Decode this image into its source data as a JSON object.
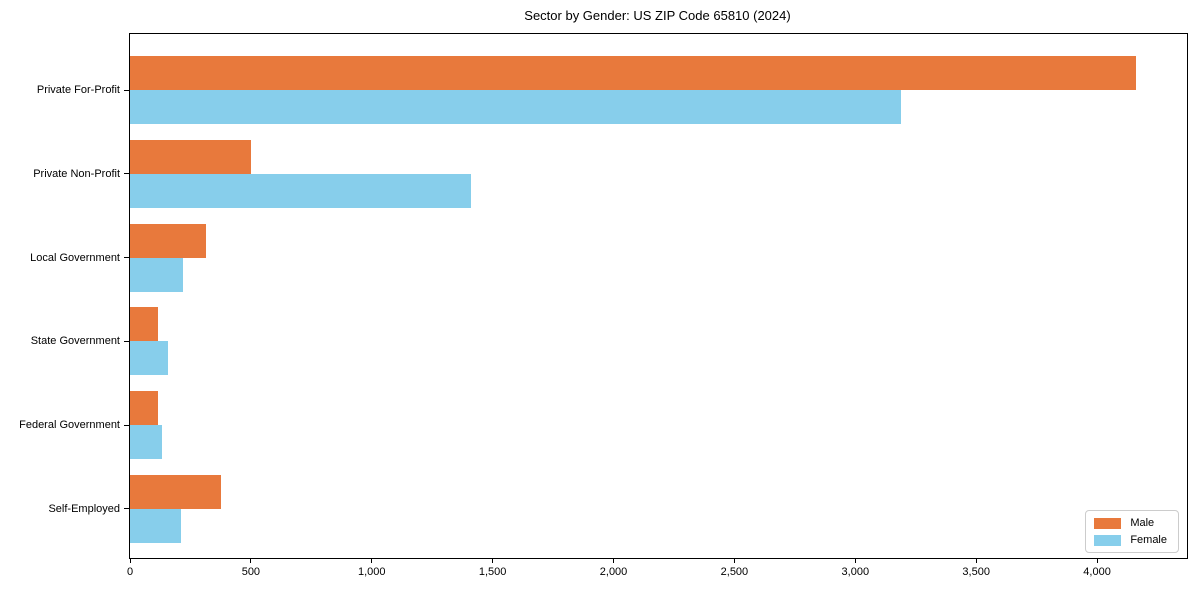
{
  "title": "Sector by Gender: US ZIP Code 65810 (2024)",
  "chart_data": {
    "type": "bar",
    "orientation": "horizontal",
    "title": "Sector by Gender: US ZIP Code 65810 (2024)",
    "xlabel": "",
    "ylabel": "",
    "categories": [
      "Private For-Profit",
      "Private Non-Profit",
      "Local Government",
      "State Government",
      "Federal Government",
      "Self-Employed"
    ],
    "series": [
      {
        "name": "Male",
        "color": "#E8793C",
        "values": [
          4160,
          500,
          315,
          117,
          117,
          375
        ]
      },
      {
        "name": "Female",
        "color": "#87CEEB",
        "values": [
          3190,
          1410,
          220,
          155,
          132,
          210
        ]
      }
    ],
    "xlim": [
      0,
      4372
    ],
    "xticks": [
      0,
      500,
      1000,
      1500,
      2000,
      2500,
      3000,
      3500,
      4000
    ],
    "xtick_labels": [
      "0",
      "500",
      "1,000",
      "1,500",
      "2,000",
      "2,500",
      "3,000",
      "3,500",
      "4,000"
    ],
    "grid": false,
    "legend_position": "lower right",
    "legend_labels": [
      "Male",
      "Female"
    ]
  }
}
